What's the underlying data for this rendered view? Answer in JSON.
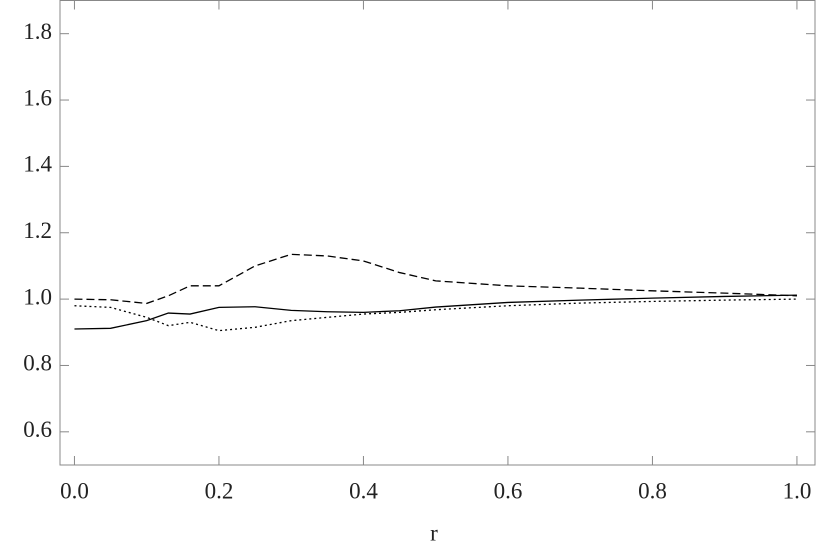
{
  "chart_data": {
    "type": "line",
    "x_label": "r",
    "x": [
      0,
      0.05,
      0.1,
      0.13,
      0.16,
      0.2,
      0.25,
      0.3,
      0.35,
      0.4,
      0.45,
      0.5,
      0.6,
      0.7,
      0.8,
      0.9,
      1.0
    ],
    "series": [
      {
        "color": "#000000",
        "dash": "solid",
        "values": [
          0.91,
          0.912,
          0.935,
          0.958,
          0.955,
          0.975,
          0.977,
          0.966,
          0.962,
          0.96,
          0.965,
          0.976,
          0.99,
          0.997,
          1.003,
          1.008,
          1.012
        ]
      },
      {
        "color": "#000000",
        "dash": "dashed",
        "values": [
          1.0,
          0.998,
          0.987,
          1.01,
          1.04,
          1.04,
          1.1,
          1.135,
          1.13,
          1.115,
          1.08,
          1.055,
          1.04,
          1.033,
          1.025,
          1.018,
          1.01
        ]
      },
      {
        "color": "#000000",
        "dash": "dotted",
        "values": [
          0.98,
          0.975,
          0.945,
          0.92,
          0.93,
          0.905,
          0.915,
          0.935,
          0.945,
          0.955,
          0.96,
          0.968,
          0.98,
          0.988,
          0.993,
          0.997,
          1.0
        ]
      }
    ],
    "xlim": [
      -0.02,
      1.025
    ],
    "ylim": [
      0.5,
      1.9
    ],
    "xticks": [
      {
        "value": 0,
        "label": "0.0"
      },
      0.2,
      0.4,
      0.6,
      0.8,
      {
        "value": 1,
        "label": "1.0"
      }
    ],
    "yticks": [
      0.6,
      0.8,
      {
        "value": 1,
        "label": "1.0"
      },
      1.2,
      1.4,
      1.6,
      1.8
    ],
    "grid": false
  }
}
